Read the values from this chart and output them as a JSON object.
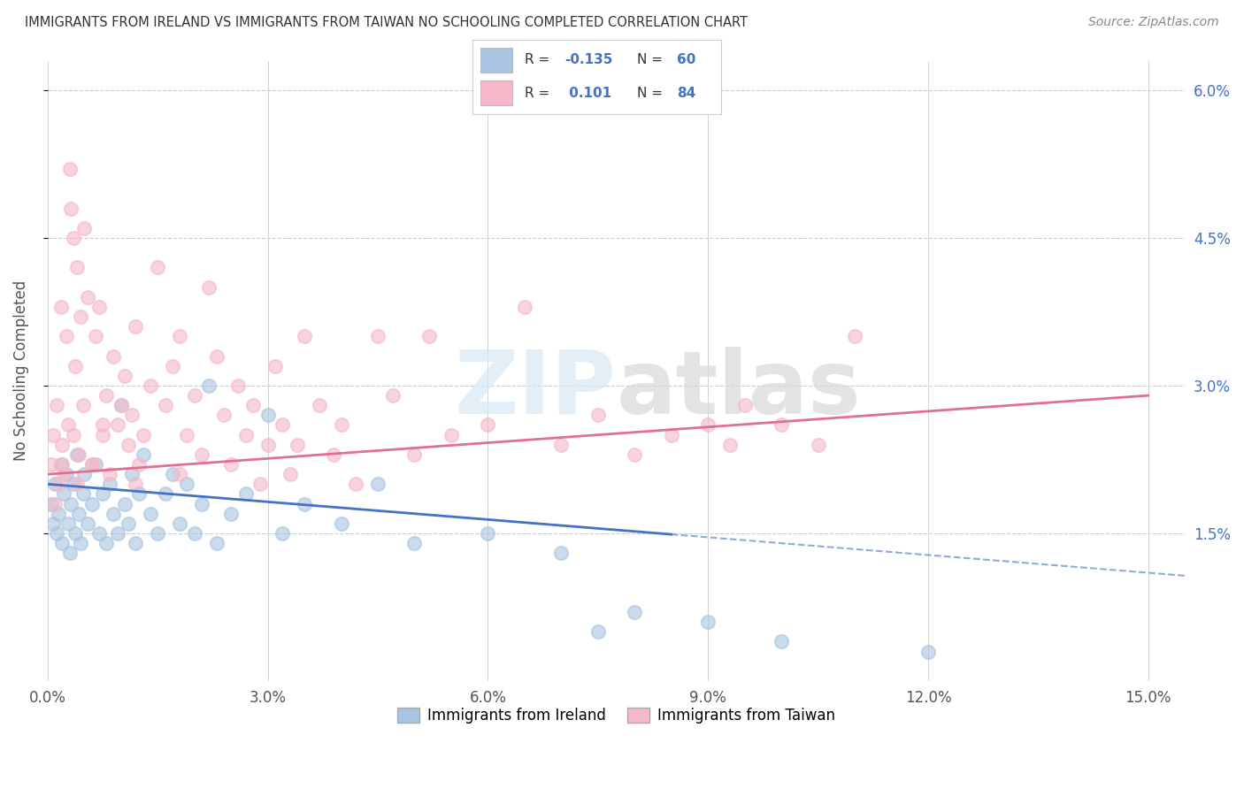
{
  "title": "IMMIGRANTS FROM IRELAND VS IMMIGRANTS FROM TAIWAN NO SCHOOLING COMPLETED CORRELATION CHART",
  "source": "Source: ZipAtlas.com",
  "xlabel_ticks": [
    "0.0%",
    "3.0%",
    "6.0%",
    "9.0%",
    "12.0%",
    "15.0%"
  ],
  "xlabel_vals": [
    0.0,
    3.0,
    6.0,
    9.0,
    12.0,
    15.0
  ],
  "ylabel_right_ticks": [
    "6.0%",
    "4.5%",
    "3.0%",
    "1.5%"
  ],
  "ylabel_right_vals": [
    6.0,
    4.5,
    3.0,
    1.5
  ],
  "xlim": [
    0.0,
    15.5
  ],
  "ylim": [
    0.0,
    6.3
  ],
  "ireland_color": "#a8c4e0",
  "taiwan_color": "#f4b8c8",
  "ireland_line_color": "#4472c4",
  "taiwan_line_color": "#e07090",
  "ireland_R": -0.135,
  "ireland_N": 60,
  "taiwan_R": 0.101,
  "taiwan_N": 84,
  "ireland_line_x0": 0.0,
  "ireland_line_y0": 2.0,
  "ireland_line_x1": 15.0,
  "ireland_line_y1": 1.1,
  "ireland_dash_x0": 9.0,
  "ireland_dash_x1": 15.5,
  "taiwan_line_x0": 0.0,
  "taiwan_line_y0": 2.1,
  "taiwan_line_x1": 15.0,
  "taiwan_line_y1": 2.9,
  "ireland_scatter": [
    [
      0.05,
      1.8
    ],
    [
      0.08,
      1.6
    ],
    [
      0.1,
      2.0
    ],
    [
      0.12,
      1.5
    ],
    [
      0.15,
      1.7
    ],
    [
      0.18,
      2.2
    ],
    [
      0.2,
      1.4
    ],
    [
      0.22,
      1.9
    ],
    [
      0.25,
      2.1
    ],
    [
      0.28,
      1.6
    ],
    [
      0.3,
      1.3
    ],
    [
      0.32,
      1.8
    ],
    [
      0.35,
      2.0
    ],
    [
      0.38,
      1.5
    ],
    [
      0.4,
      2.3
    ],
    [
      0.42,
      1.7
    ],
    [
      0.45,
      1.4
    ],
    [
      0.48,
      1.9
    ],
    [
      0.5,
      2.1
    ],
    [
      0.55,
      1.6
    ],
    [
      0.6,
      1.8
    ],
    [
      0.65,
      2.2
    ],
    [
      0.7,
      1.5
    ],
    [
      0.75,
      1.9
    ],
    [
      0.8,
      1.4
    ],
    [
      0.85,
      2.0
    ],
    [
      0.9,
      1.7
    ],
    [
      0.95,
      1.5
    ],
    [
      1.0,
      2.8
    ],
    [
      1.05,
      1.8
    ],
    [
      1.1,
      1.6
    ],
    [
      1.15,
      2.1
    ],
    [
      1.2,
      1.4
    ],
    [
      1.25,
      1.9
    ],
    [
      1.3,
      2.3
    ],
    [
      1.4,
      1.7
    ],
    [
      1.5,
      1.5
    ],
    [
      1.6,
      1.9
    ],
    [
      1.7,
      2.1
    ],
    [
      1.8,
      1.6
    ],
    [
      1.9,
      2.0
    ],
    [
      2.0,
      1.5
    ],
    [
      2.1,
      1.8
    ],
    [
      2.2,
      3.0
    ],
    [
      2.3,
      1.4
    ],
    [
      2.5,
      1.7
    ],
    [
      2.7,
      1.9
    ],
    [
      3.0,
      2.7
    ],
    [
      3.2,
      1.5
    ],
    [
      3.5,
      1.8
    ],
    [
      4.0,
      1.6
    ],
    [
      4.5,
      2.0
    ],
    [
      5.0,
      1.4
    ],
    [
      6.0,
      1.5
    ],
    [
      7.0,
      1.3
    ],
    [
      7.5,
      0.5
    ],
    [
      8.0,
      0.7
    ],
    [
      9.0,
      0.6
    ],
    [
      10.0,
      0.4
    ],
    [
      12.0,
      0.3
    ]
  ],
  "taiwan_scatter": [
    [
      0.05,
      2.2
    ],
    [
      0.08,
      2.5
    ],
    [
      0.1,
      1.8
    ],
    [
      0.12,
      2.8
    ],
    [
      0.15,
      2.0
    ],
    [
      0.18,
      3.8
    ],
    [
      0.2,
      2.4
    ],
    [
      0.22,
      2.1
    ],
    [
      0.25,
      3.5
    ],
    [
      0.28,
      2.6
    ],
    [
      0.3,
      5.2
    ],
    [
      0.32,
      4.8
    ],
    [
      0.35,
      4.5
    ],
    [
      0.38,
      3.2
    ],
    [
      0.4,
      4.2
    ],
    [
      0.42,
      2.3
    ],
    [
      0.45,
      3.7
    ],
    [
      0.48,
      2.8
    ],
    [
      0.5,
      4.6
    ],
    [
      0.55,
      3.9
    ],
    [
      0.6,
      2.2
    ],
    [
      0.65,
      3.5
    ],
    [
      0.7,
      3.8
    ],
    [
      0.75,
      2.5
    ],
    [
      0.8,
      2.9
    ],
    [
      0.85,
      2.1
    ],
    [
      0.9,
      3.3
    ],
    [
      0.95,
      2.6
    ],
    [
      1.0,
      2.8
    ],
    [
      1.05,
      3.1
    ],
    [
      1.1,
      2.4
    ],
    [
      1.15,
      2.7
    ],
    [
      1.2,
      3.6
    ],
    [
      1.25,
      2.2
    ],
    [
      1.3,
      2.5
    ],
    [
      1.4,
      3.0
    ],
    [
      1.5,
      4.2
    ],
    [
      1.6,
      2.8
    ],
    [
      1.7,
      3.2
    ],
    [
      1.8,
      2.1
    ],
    [
      1.9,
      2.5
    ],
    [
      2.0,
      2.9
    ],
    [
      2.1,
      2.3
    ],
    [
      2.2,
      4.0
    ],
    [
      2.3,
      3.3
    ],
    [
      2.4,
      2.7
    ],
    [
      2.5,
      2.2
    ],
    [
      2.6,
      3.0
    ],
    [
      2.7,
      2.5
    ],
    [
      2.8,
      2.8
    ],
    [
      2.9,
      2.0
    ],
    [
      3.0,
      2.4
    ],
    [
      3.1,
      3.2
    ],
    [
      3.2,
      2.6
    ],
    [
      3.3,
      2.1
    ],
    [
      3.4,
      2.4
    ],
    [
      3.5,
      3.5
    ],
    [
      3.7,
      2.8
    ],
    [
      3.9,
      2.3
    ],
    [
      4.0,
      2.6
    ],
    [
      4.2,
      2.0
    ],
    [
      4.5,
      3.5
    ],
    [
      4.7,
      2.9
    ],
    [
      5.0,
      2.3
    ],
    [
      5.2,
      3.5
    ],
    [
      5.5,
      2.5
    ],
    [
      6.0,
      2.6
    ],
    [
      6.5,
      3.8
    ],
    [
      7.0,
      2.4
    ],
    [
      7.5,
      2.7
    ],
    [
      8.0,
      2.3
    ],
    [
      8.5,
      2.5
    ],
    [
      9.0,
      2.6
    ],
    [
      9.3,
      2.4
    ],
    [
      9.5,
      2.8
    ],
    [
      10.0,
      2.6
    ],
    [
      10.5,
      2.4
    ],
    [
      11.0,
      3.5
    ],
    [
      0.35,
      2.5
    ],
    [
      0.6,
      2.2
    ],
    [
      1.2,
      2.0
    ],
    [
      1.8,
      3.5
    ],
    [
      0.2,
      2.2
    ],
    [
      0.4,
      2.0
    ],
    [
      0.75,
      2.6
    ]
  ]
}
